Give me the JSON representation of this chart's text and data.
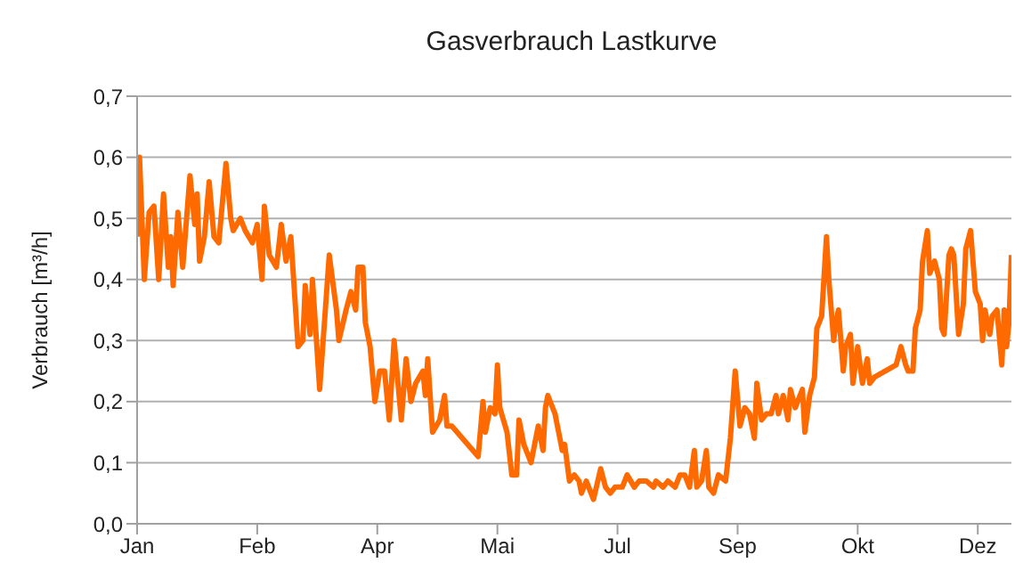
{
  "chart_data": {
    "type": "line",
    "title": "Gasverbrauch Lastkurve",
    "ylabel": "Verbrauch [m³/h]",
    "xlim": [
      "--01-01",
      "--12-31"
    ],
    "xticks": [
      {
        "value": "--01-01",
        "label": "Jan"
      },
      {
        "value": "--02-20",
        "label": "Feb"
      },
      {
        "value": "--04-11",
        "label": "Apr"
      },
      {
        "value": "--05-31",
        "label": "Mai"
      },
      {
        "value": "--07-20",
        "label": "Jul"
      },
      {
        "value": "--09-08",
        "label": "Sep"
      },
      {
        "value": "--10-28",
        "label": "Okt"
      },
      {
        "value": "--12-17",
        "label": "Dez"
      }
    ],
    "ylim": [
      0,
      0.7
    ],
    "yticks": [
      {
        "value": 0,
        "label": "0,0"
      },
      {
        "value": 0.1,
        "label": "0,1"
      },
      {
        "value": 0.2,
        "label": "0,2"
      },
      {
        "value": 0.3,
        "label": "0,3"
      },
      {
        "value": 0.4,
        "label": "0,4"
      },
      {
        "value": 0.5,
        "label": "0,5"
      },
      {
        "value": 0.6,
        "label": "0,6"
      },
      {
        "value": 0.7,
        "label": "0,7"
      }
    ],
    "grid": "y",
    "marker": "none",
    "line_style": "solid",
    "x": [
      "--01-01",
      "--01-02",
      "--01-04",
      "--01-06",
      "--01-08",
      "--01-10",
      "--01-12",
      "--01-14",
      "--01-15",
      "--01-16",
      "--01-18",
      "--01-20",
      "--01-23",
      "--01-25",
      "--01-26",
      "--01-27",
      "--01-29",
      "--01-31",
      "--02-02",
      "--02-04",
      "--02-07",
      "--02-09",
      "--02-10",
      "--02-13",
      "--02-15",
      "--02-18",
      "--02-20",
      "--02-22",
      "--02-23",
      "--02-25",
      "--02-28",
      "--03-02",
      "--03-04",
      "--03-06",
      "--03-09",
      "--03-11",
      "--03-12",
      "--03-14",
      "--03-15",
      "--03-18",
      "--03-22",
      "--03-25",
      "--03-26",
      "--03-29",
      "--03-31",
      "--04-02",
      "--04-03",
      "--04-05",
      "--04-06",
      "--04-08",
      "--04-10",
      "--04-12",
      "--04-14",
      "--04-16",
      "--04-18",
      "--04-21",
      "--04-23",
      "--04-25",
      "--04-27",
      "--04-30",
      "--05-01",
      "--05-02",
      "--05-04",
      "--05-07",
      "--05-09",
      "--05-10",
      "--05-12",
      "--05-23",
      "--05-25",
      "--05-26",
      "--05-28",
      "--05-30",
      "--05-31",
      "--06-01",
      "--06-04",
      "--06-06",
      "--06-08",
      "--06-09",
      "--06-11",
      "--06-14",
      "--06-17",
      "--06-19",
      "--06-20",
      "--06-21",
      "--06-24",
      "--06-26",
      "--06-27",
      "--06-28",
      "--06-30",
      "--07-02",
      "--07-04",
      "--07-05",
      "--07-07",
      "--07-08",
      "--07-10",
      "--07-13",
      "--07-15",
      "--07-17",
      "--07-19",
      "--07-22",
      "--07-24",
      "--07-27",
      "--07-29",
      "--08-01",
      "--08-04",
      "--08-05",
      "--08-08",
      "--08-10",
      "--08-13",
      "--08-15",
      "--08-17",
      "--08-19",
      "--08-21",
      "--08-22",
      "--08-24",
      "--08-26",
      "--08-27",
      "--08-29",
      "--08-31",
      "--09-03",
      "--09-05",
      "--09-07",
      "--09-09",
      "--09-11",
      "--09-13",
      "--09-15",
      "--09-16",
      "--09-18",
      "--09-20",
      "--09-22",
      "--09-24",
      "--09-25",
      "--09-27",
      "--09-29",
      "--09-30",
      "--10-02",
      "--10-05",
      "--10-06",
      "--10-08",
      "--10-10",
      "--10-11",
      "--10-13",
      "--10-15",
      "--10-16",
      "--10-18",
      "--10-19",
      "--10-20",
      "--10-22",
      "--10-23",
      "--10-25",
      "--10-26",
      "--10-28",
      "--10-30",
      "--11-01",
      "--11-02",
      "--11-04",
      "--11-13",
      "--11-15",
      "--11-17",
      "--11-18",
      "--11-20",
      "--11-21",
      "--11-23",
      "--11-24",
      "--11-26",
      "--11-27",
      "--11-29",
      "--12-01",
      "--12-02",
      "--12-03",
      "--12-05",
      "--12-06",
      "--12-07",
      "--12-09",
      "--12-11",
      "--12-12",
      "--12-14",
      "--12-16",
      "--12-18",
      "--12-19",
      "--12-20",
      "--12-22",
      "--12-23",
      "--12-25",
      "--12-27",
      "--12-28",
      "--12-29",
      "--12-30",
      "--12-31"
    ],
    "series": [
      {
        "color": "#ff6a00",
        "values": [
          0.47,
          0.6,
          0.4,
          0.51,
          0.52,
          0.4,
          0.54,
          0.42,
          0.47,
          0.39,
          0.51,
          0.42,
          0.57,
          0.49,
          0.54,
          0.43,
          0.47,
          0.56,
          0.47,
          0.46,
          0.59,
          0.5,
          0.48,
          0.5,
          0.48,
          0.46,
          0.49,
          0.4,
          0.52,
          0.44,
          0.42,
          0.49,
          0.43,
          0.47,
          0.29,
          0.3,
          0.39,
          0.31,
          0.4,
          0.22,
          0.44,
          0.35,
          0.3,
          0.35,
          0.38,
          0.35,
          0.42,
          0.42,
          0.33,
          0.29,
          0.2,
          0.25,
          0.25,
          0.17,
          0.3,
          0.17,
          0.27,
          0.2,
          0.23,
          0.25,
          0.21,
          0.27,
          0.15,
          0.17,
          0.21,
          0.16,
          0.16,
          0.11,
          0.2,
          0.15,
          0.19,
          0.18,
          0.26,
          0.19,
          0.15,
          0.08,
          0.08,
          0.17,
          0.13,
          0.1,
          0.16,
          0.12,
          0.19,
          0.21,
          0.18,
          0.14,
          0.12,
          0.13,
          0.07,
          0.08,
          0.07,
          0.05,
          0.07,
          0.06,
          0.04,
          0.09,
          0.06,
          0.05,
          0.06,
          0.06,
          0.08,
          0.06,
          0.07,
          0.07,
          0.06,
          0.07,
          0.06,
          0.07,
          0.06,
          0.08,
          0.08,
          0.06,
          0.12,
          0.06,
          0.07,
          0.12,
          0.06,
          0.05,
          0.08,
          0.07,
          0.14,
          0.25,
          0.16,
          0.19,
          0.18,
          0.14,
          0.23,
          0.17,
          0.18,
          0.18,
          0.21,
          0.18,
          0.21,
          0.17,
          0.22,
          0.19,
          0.22,
          0.15,
          0.21,
          0.24,
          0.32,
          0.34,
          0.47,
          0.4,
          0.3,
          0.33,
          0.35,
          0.25,
          0.29,
          0.31,
          0.23,
          0.29,
          0.23,
          0.27,
          0.23,
          0.24,
          0.26,
          0.29,
          0.26,
          0.25,
          0.25,
          0.32,
          0.35,
          0.43,
          0.48,
          0.41,
          0.43,
          0.4,
          0.32,
          0.31,
          0.44,
          0.45,
          0.44,
          0.31,
          0.36,
          0.45,
          0.48,
          0.38,
          0.36,
          0.3,
          0.35,
          0.31,
          0.34,
          0.35,
          0.26,
          0.35,
          0.29,
          0.33,
          0.44
        ]
      }
    ]
  }
}
